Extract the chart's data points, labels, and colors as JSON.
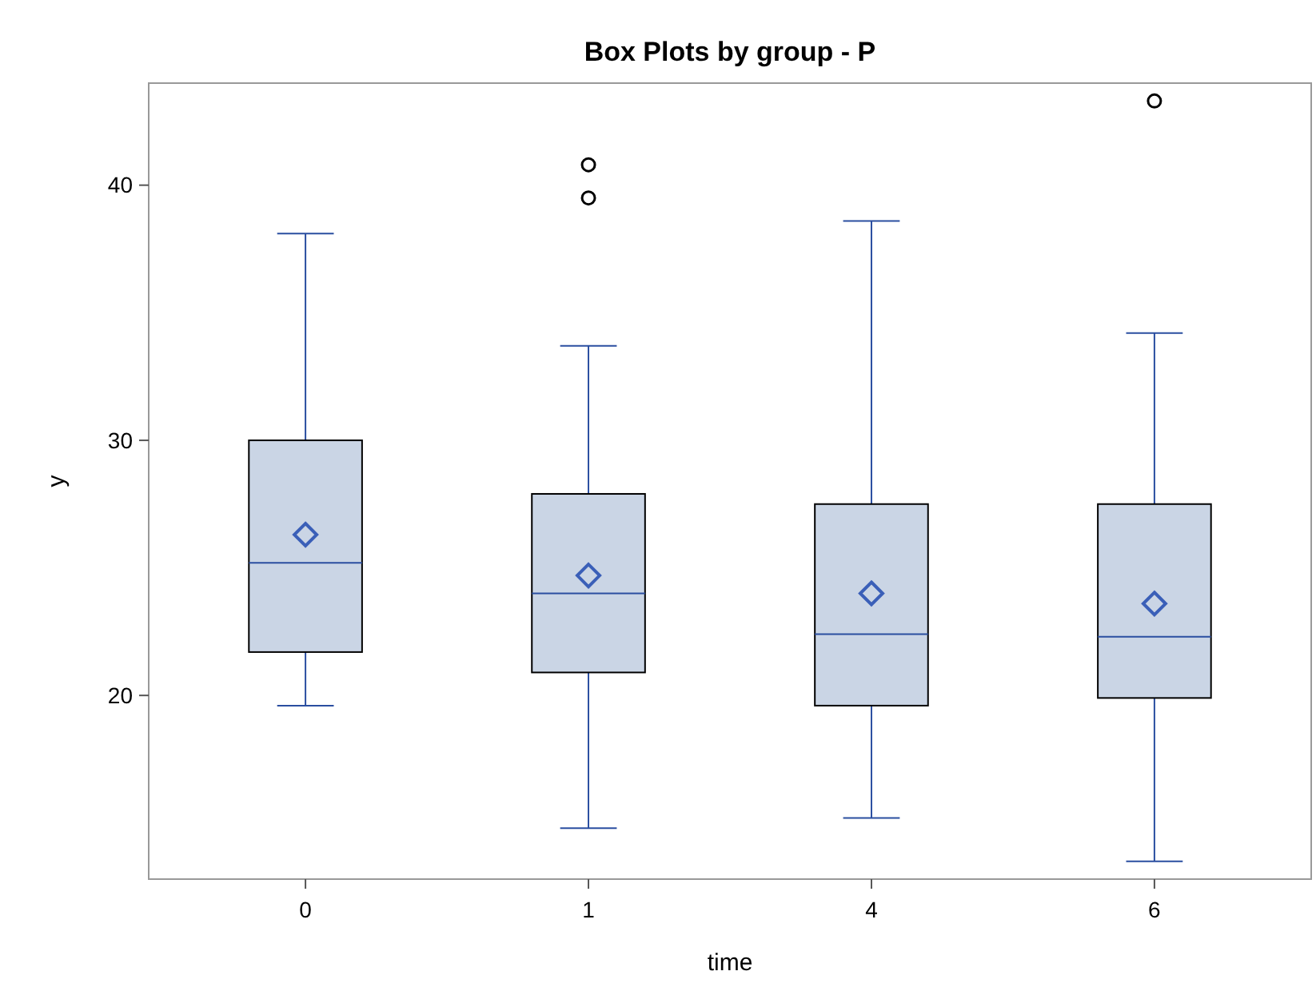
{
  "chart_data": {
    "type": "box",
    "title": "Box Plots by group - P",
    "xlabel": "time",
    "ylabel": "y",
    "categories": [
      "0",
      "1",
      "4",
      "6"
    ],
    "color": "#cad5e5",
    "ylim": [
      12.8,
      44
    ],
    "yticks": [
      20,
      30,
      40
    ],
    "grid": false,
    "boxes": [
      {
        "low": 19.6,
        "q1": 21.7,
        "median": 25.2,
        "q3": 30,
        "high": 38.1,
        "mean": 26.3
      },
      {
        "low": 14.8,
        "q1": 20.9,
        "median": 24,
        "q3": 27.9,
        "high": 33.7,
        "mean": 24.7,
        "outliers": [
          39.5,
          40.8
        ]
      },
      {
        "low": 15.2,
        "q1": 19.6,
        "median": 22.4,
        "q3": 27.5,
        "high": 38.6,
        "mean": 24
      },
      {
        "low": 13.5,
        "q1": 19.9,
        "median": 22.3,
        "q3": 27.5,
        "high": 34.2,
        "mean": 23.6,
        "outliers": [
          43.3
        ]
      }
    ]
  }
}
